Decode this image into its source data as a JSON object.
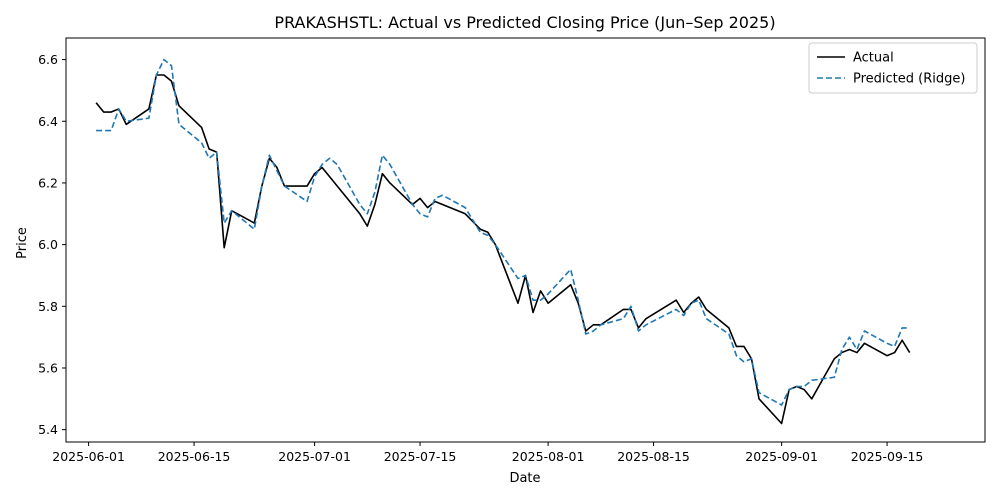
{
  "chart_data": {
    "type": "line",
    "title": "PRAKASHSTL: Actual vs Predicted Closing Price (Jun–Sep 2025)",
    "xlabel": "Date",
    "ylabel": "Price",
    "xlim": [
      "2025-05-29",
      "2025-09-28"
    ],
    "ylim": [
      5.36,
      6.67
    ],
    "x_ticks": [
      "2025-06-01",
      "2025-06-15",
      "2025-07-01",
      "2025-07-15",
      "2025-08-01",
      "2025-08-15",
      "2025-09-01",
      "2025-09-15"
    ],
    "y_ticks": [
      5.4,
      5.6,
      5.8,
      6.0,
      6.2,
      6.4,
      6.6
    ],
    "y_tick_labels": [
      "5.4",
      "5.6",
      "5.8",
      "6.0",
      "6.2",
      "6.4",
      "6.6"
    ],
    "grid": false,
    "legend_position": "top-right",
    "series": [
      {
        "name": "Actual",
        "color": "#000000",
        "style": "solid",
        "points": [
          [
            "2025-06-02",
            6.46
          ],
          [
            "2025-06-03",
            6.43
          ],
          [
            "2025-06-04",
            6.43
          ],
          [
            "2025-06-05",
            6.44
          ],
          [
            "2025-06-06",
            6.39
          ],
          [
            "2025-06-09",
            6.44
          ],
          [
            "2025-06-10",
            6.55
          ],
          [
            "2025-06-11",
            6.55
          ],
          [
            "2025-06-12",
            6.53
          ],
          [
            "2025-06-13",
            6.45
          ],
          [
            "2025-06-16",
            6.38
          ],
          [
            "2025-06-17",
            6.31
          ],
          [
            "2025-06-18",
            6.3
          ],
          [
            "2025-06-19",
            5.99
          ],
          [
            "2025-06-20",
            6.11
          ],
          [
            "2025-06-23",
            6.07
          ],
          [
            "2025-06-24",
            6.19
          ],
          [
            "2025-06-25",
            6.28
          ],
          [
            "2025-06-26",
            6.25
          ],
          [
            "2025-06-27",
            6.19
          ],
          [
            "2025-06-30",
            6.19
          ],
          [
            "2025-07-01",
            6.23
          ],
          [
            "2025-07-02",
            6.25
          ],
          [
            "2025-07-03",
            6.22
          ],
          [
            "2025-07-04",
            6.19
          ],
          [
            "2025-07-07",
            6.1
          ],
          [
            "2025-07-08",
            6.06
          ],
          [
            "2025-07-09",
            6.13
          ],
          [
            "2025-07-10",
            6.23
          ],
          [
            "2025-07-11",
            6.2
          ],
          [
            "2025-07-14",
            6.13
          ],
          [
            "2025-07-15",
            6.15
          ],
          [
            "2025-07-16",
            6.12
          ],
          [
            "2025-07-17",
            6.14
          ],
          [
            "2025-07-21",
            6.1
          ],
          [
            "2025-07-23",
            6.05
          ],
          [
            "2025-07-24",
            6.04
          ],
          [
            "2025-07-25",
            6.0
          ],
          [
            "2025-07-28",
            5.81
          ],
          [
            "2025-07-29",
            5.9
          ],
          [
            "2025-07-30",
            5.78
          ],
          [
            "2025-07-31",
            5.85
          ],
          [
            "2025-08-01",
            5.81
          ],
          [
            "2025-08-04",
            5.87
          ],
          [
            "2025-08-05",
            5.81
          ],
          [
            "2025-08-06",
            5.72
          ],
          [
            "2025-08-07",
            5.74
          ],
          [
            "2025-08-08",
            5.74
          ],
          [
            "2025-08-11",
            5.79
          ],
          [
            "2025-08-12",
            5.79
          ],
          [
            "2025-08-13",
            5.73
          ],
          [
            "2025-08-14",
            5.76
          ],
          [
            "2025-08-18",
            5.82
          ],
          [
            "2025-08-19",
            5.78
          ],
          [
            "2025-08-20",
            5.81
          ],
          [
            "2025-08-21",
            5.83
          ],
          [
            "2025-08-22",
            5.79
          ],
          [
            "2025-08-25",
            5.73
          ],
          [
            "2025-08-26",
            5.67
          ],
          [
            "2025-08-27",
            5.67
          ],
          [
            "2025-08-28",
            5.63
          ],
          [
            "2025-08-29",
            5.5
          ],
          [
            "2025-09-01",
            5.42
          ],
          [
            "2025-09-02",
            5.53
          ],
          [
            "2025-09-03",
            5.54
          ],
          [
            "2025-09-04",
            5.53
          ],
          [
            "2025-09-05",
            5.5
          ],
          [
            "2025-09-08",
            5.63
          ],
          [
            "2025-09-09",
            5.65
          ],
          [
            "2025-09-10",
            5.66
          ],
          [
            "2025-09-11",
            5.65
          ],
          [
            "2025-09-12",
            5.68
          ],
          [
            "2025-09-15",
            5.64
          ],
          [
            "2025-09-16",
            5.65
          ],
          [
            "2025-09-17",
            5.69
          ],
          [
            "2025-09-18",
            5.65
          ]
        ]
      },
      {
        "name": "Predicted (Ridge)",
        "color": "#1f77b4",
        "style": "dashed",
        "points": [
          [
            "2025-06-02",
            6.37
          ],
          [
            "2025-06-03",
            6.37
          ],
          [
            "2025-06-04",
            6.37
          ],
          [
            "2025-06-05",
            6.44
          ],
          [
            "2025-06-06",
            6.4
          ],
          [
            "2025-06-09",
            6.41
          ],
          [
            "2025-06-10",
            6.55
          ],
          [
            "2025-06-11",
            6.6
          ],
          [
            "2025-06-12",
            6.58
          ],
          [
            "2025-06-13",
            6.39
          ],
          [
            "2025-06-16",
            6.33
          ],
          [
            "2025-06-17",
            6.28
          ],
          [
            "2025-06-18",
            6.3
          ],
          [
            "2025-06-19",
            6.07
          ],
          [
            "2025-06-20",
            6.11
          ],
          [
            "2025-06-23",
            6.05
          ],
          [
            "2025-06-24",
            6.19
          ],
          [
            "2025-06-25",
            6.29
          ],
          [
            "2025-06-26",
            6.24
          ],
          [
            "2025-06-27",
            6.19
          ],
          [
            "2025-06-30",
            6.14
          ],
          [
            "2025-07-01",
            6.22
          ],
          [
            "2025-07-02",
            6.26
          ],
          [
            "2025-07-03",
            6.28
          ],
          [
            "2025-07-04",
            6.26
          ],
          [
            "2025-07-07",
            6.13
          ],
          [
            "2025-07-08",
            6.1
          ],
          [
            "2025-07-09",
            6.17
          ],
          [
            "2025-07-10",
            6.29
          ],
          [
            "2025-07-11",
            6.26
          ],
          [
            "2025-07-14",
            6.13
          ],
          [
            "2025-07-15",
            6.1
          ],
          [
            "2025-07-16",
            6.09
          ],
          [
            "2025-07-17",
            6.15
          ],
          [
            "2025-07-18",
            6.16
          ],
          [
            "2025-07-21",
            6.12
          ],
          [
            "2025-07-23",
            6.04
          ],
          [
            "2025-07-24",
            6.03
          ],
          [
            "2025-07-25",
            6.0
          ],
          [
            "2025-07-28",
            5.89
          ],
          [
            "2025-07-29",
            5.9
          ],
          [
            "2025-07-30",
            5.82
          ],
          [
            "2025-07-31",
            5.82
          ],
          [
            "2025-08-01",
            5.84
          ],
          [
            "2025-08-04",
            5.92
          ],
          [
            "2025-08-05",
            5.82
          ],
          [
            "2025-08-06",
            5.71
          ],
          [
            "2025-08-07",
            5.72
          ],
          [
            "2025-08-08",
            5.74
          ],
          [
            "2025-08-11",
            5.76
          ],
          [
            "2025-08-12",
            5.8
          ],
          [
            "2025-08-13",
            5.72
          ],
          [
            "2025-08-14",
            5.74
          ],
          [
            "2025-08-18",
            5.79
          ],
          [
            "2025-08-19",
            5.77
          ],
          [
            "2025-08-20",
            5.81
          ],
          [
            "2025-08-21",
            5.82
          ],
          [
            "2025-08-22",
            5.76
          ],
          [
            "2025-08-25",
            5.71
          ],
          [
            "2025-08-26",
            5.64
          ],
          [
            "2025-08-27",
            5.62
          ],
          [
            "2025-08-28",
            5.63
          ],
          [
            "2025-08-29",
            5.52
          ],
          [
            "2025-09-01",
            5.48
          ],
          [
            "2025-09-02",
            5.53
          ],
          [
            "2025-09-03",
            5.54
          ],
          [
            "2025-09-04",
            5.54
          ],
          [
            "2025-09-05",
            5.56
          ],
          [
            "2025-09-08",
            5.57
          ],
          [
            "2025-09-09",
            5.66
          ],
          [
            "2025-09-10",
            5.7
          ],
          [
            "2025-09-11",
            5.66
          ],
          [
            "2025-09-12",
            5.72
          ],
          [
            "2025-09-15",
            5.68
          ],
          [
            "2025-09-16",
            5.67
          ],
          [
            "2025-09-17",
            5.73
          ],
          [
            "2025-09-18",
            5.73
          ]
        ]
      }
    ]
  }
}
